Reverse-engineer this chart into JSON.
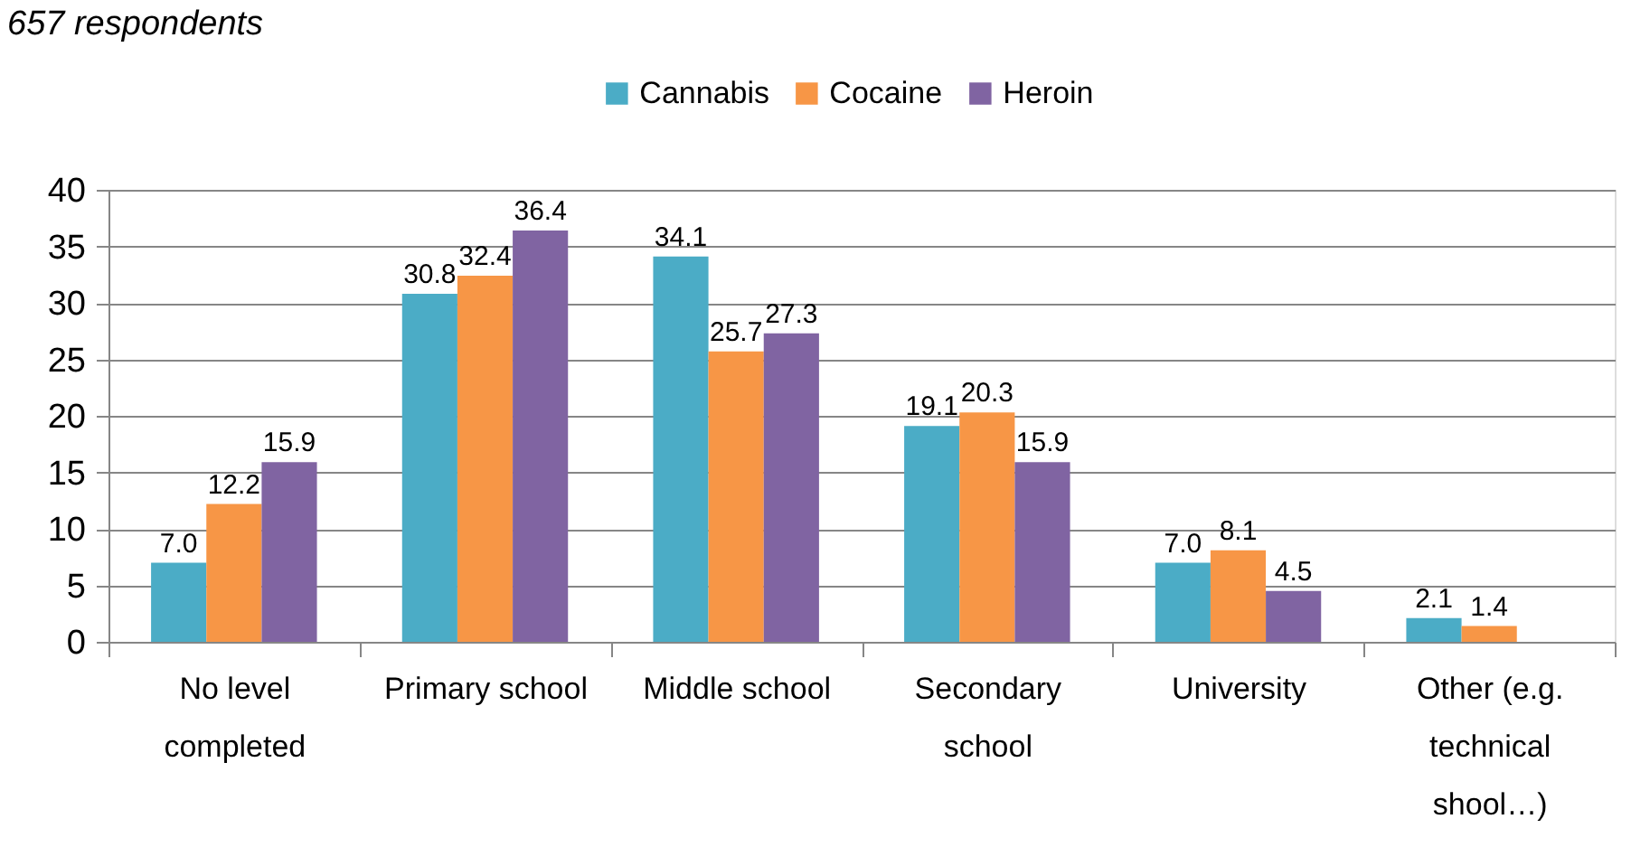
{
  "chart_data": {
    "type": "bar",
    "title": "657 respondents",
    "categories": [
      "No level completed",
      "Primary school",
      "Middle school",
      "Secondary school",
      "University",
      "Other (e.g. technical shool…)"
    ],
    "series": [
      {
        "name": "Cannabis",
        "color": "#4bacc6",
        "values": [
          7.0,
          30.8,
          34.1,
          19.1,
          7.0,
          2.1
        ],
        "value_labels": [
          "7.0",
          "30.8",
          "34.1",
          "19.1",
          "7.0",
          "2.1"
        ]
      },
      {
        "name": "Cocaine",
        "color": "#f79646",
        "values": [
          12.2,
          32.4,
          25.7,
          20.3,
          8.1,
          1.4
        ],
        "value_labels": [
          "12.2",
          "32.4",
          "25.7",
          "20.3",
          "8.1",
          "1.4"
        ]
      },
      {
        "name": "Heroin",
        "color": "#8064a2",
        "values": [
          15.9,
          36.4,
          27.3,
          15.9,
          4.5,
          null
        ],
        "value_labels": [
          "15.9",
          "36.4",
          "27.3",
          "15.9",
          "4.5",
          null
        ]
      }
    ],
    "ylim": [
      0,
      40
    ],
    "yticks": [
      0,
      5,
      10,
      15,
      20,
      25,
      30,
      35,
      40
    ],
    "grid": "y",
    "legend": "top"
  }
}
